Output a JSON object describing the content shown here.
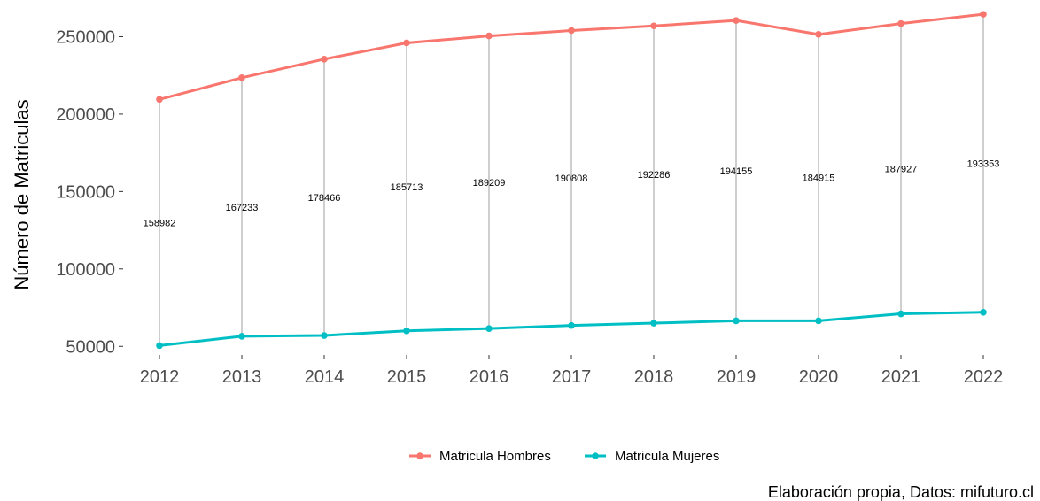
{
  "chart_data": {
    "type": "line",
    "ylabel": "Número de Matriculas",
    "xlabel": "",
    "caption": "Elaboración propia, Datos: mifuturo.cl",
    "x": [
      "2012",
      "2013",
      "2014",
      "2015",
      "2016",
      "2017",
      "2018",
      "2019",
      "2020",
      "2021",
      "2022"
    ],
    "ylim": [
      45000,
      268000
    ],
    "yticks": [
      50000,
      100000,
      150000,
      200000,
      250000
    ],
    "ytick_labels": [
      "50000",
      "100000",
      "150000",
      "200000",
      "250000"
    ],
    "grid": false,
    "legend_position": "bottom",
    "series": [
      {
        "name": "Matricula Hombres",
        "color": "#F8766D",
        "values": [
          209500,
          223500,
          235500,
          246000,
          250500,
          254000,
          257000,
          260500,
          251500,
          258500,
          264500
        ]
      },
      {
        "name": "Matricula Mujeres",
        "color": "#00BFC4",
        "values": [
          50500,
          56500,
          57000,
          60000,
          61500,
          63500,
          65000,
          66500,
          66500,
          71000,
          72000
        ]
      }
    ],
    "difference_labels": [
      "158982",
      "167233",
      "178466",
      "185713",
      "189209",
      "190808",
      "192286",
      "194155",
      "184915",
      "187927",
      "193353"
    ],
    "connector_color": "#b3b3b3"
  }
}
